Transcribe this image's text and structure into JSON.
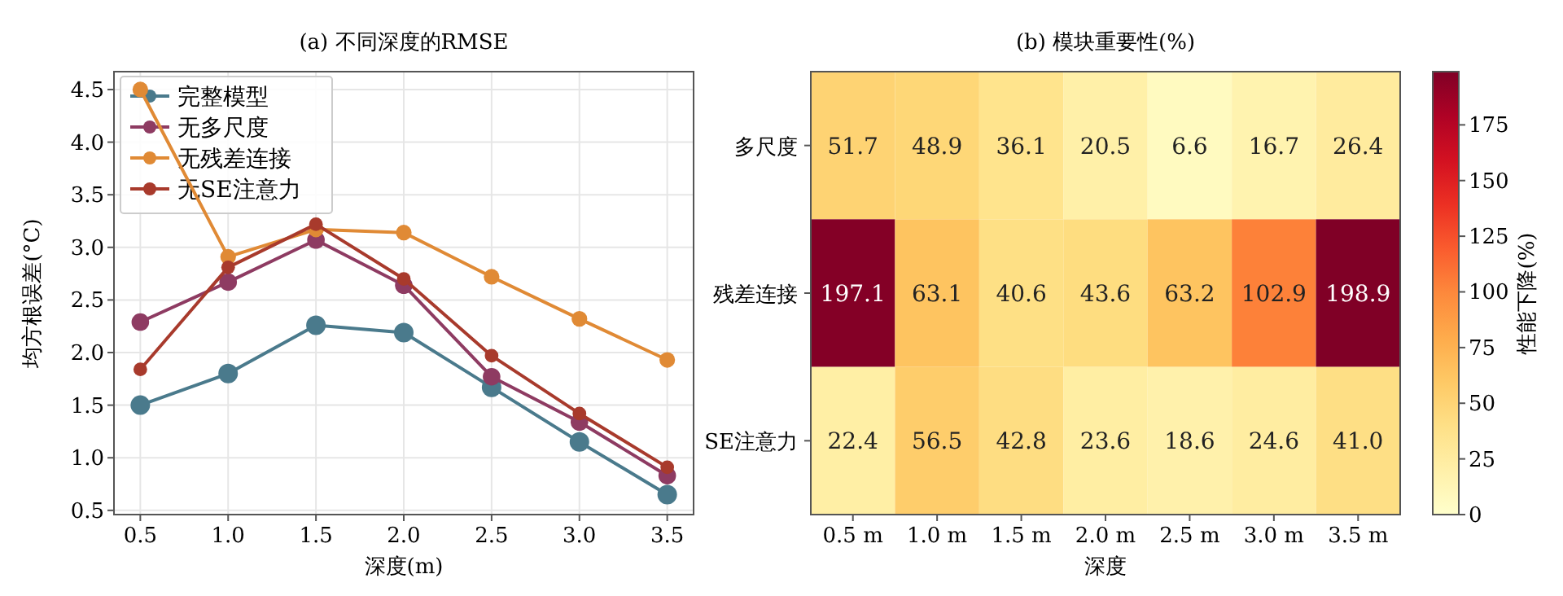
{
  "chart_data": [
    {
      "type": "line",
      "title": "(a) 不同深度的RMSE",
      "xlabel": "深度(m)",
      "ylabel": "均方根误差(°C)",
      "x": [
        0.5,
        1.0,
        1.5,
        2.0,
        2.5,
        3.0,
        3.5
      ],
      "xlim": [
        0.35,
        3.65
      ],
      "ylim": [
        0.46,
        4.67
      ],
      "xticks": [
        0.5,
        {
          "value": 1,
          "label": "1.0"
        },
        1.5,
        {
          "value": 2,
          "label": "2.0"
        },
        2.5,
        {
          "value": 3,
          "label": "3.0"
        },
        3.5
      ],
      "yticks": [
        0.5,
        {
          "value": 1,
          "label": "1.0"
        },
        1.5,
        {
          "value": 2,
          "label": "2.0"
        },
        2.5,
        {
          "value": 3,
          "label": "3.0"
        },
        3.5,
        {
          "value": 4,
          "label": "4.0"
        },
        4.5
      ],
      "grid": true,
      "legend": "top left",
      "marker": "circle",
      "line_style": "solid",
      "series": [
        {
          "name": "完整模型",
          "color": "#4a7a8c",
          "values": [
            1.5,
            1.8,
            2.26,
            2.19,
            1.67,
            1.15,
            0.65
          ]
        },
        {
          "name": "无多尺度",
          "color": "#8e3b62",
          "values": [
            2.29,
            2.67,
            3.07,
            2.64,
            1.77,
            1.34,
            0.83
          ]
        },
        {
          "name": "无残差连接",
          "color": "#e08a35",
          "values": [
            4.5,
            2.91,
            3.17,
            3.14,
            2.72,
            2.32,
            1.93
          ]
        },
        {
          "name": "无SE注意力",
          "color": "#a83a2c",
          "values": [
            1.84,
            2.81,
            3.22,
            2.7,
            1.97,
            1.42,
            0.91
          ]
        }
      ]
    },
    {
      "type": "heatmap",
      "title": "(b) 模块重要性(%)",
      "xlabel": "深度",
      "clabel": "性能下降(%)",
      "categories": [
        "0.5 m",
        "1.0 m",
        "1.5 m",
        "2.0 m",
        "2.5 m",
        "3.0 m",
        "3.5 m"
      ],
      "y_categories": [
        "多尺度",
        "残差连接",
        "SE注意力"
      ],
      "cells": [
        [
          51.7,
          48.9,
          36.1,
          20.5,
          6.6,
          16.7,
          26.4
        ],
        [
          197.1,
          63.1,
          40.6,
          43.6,
          63.2,
          102.9,
          198.9
        ],
        [
          22.4,
          56.5,
          42.8,
          23.6,
          18.6,
          24.6,
          41.0
        ]
      ],
      "cell_labels": [
        [
          "51.7",
          "48.9",
          "36.1",
          "20.5",
          "6.6",
          "16.7",
          "26.4"
        ],
        [
          "197.1",
          "63.1",
          "40.6",
          "43.6",
          "63.2",
          "102.9",
          "198.9"
        ],
        [
          "22.4",
          "56.5",
          "42.8",
          "23.6",
          "18.6",
          "24.6",
          "41.0"
        ]
      ],
      "data_labels": true,
      "clim": [
        0,
        198.9
      ],
      "cticks": [
        0,
        25,
        50,
        75,
        100,
        125,
        150,
        175
      ]
    }
  ]
}
